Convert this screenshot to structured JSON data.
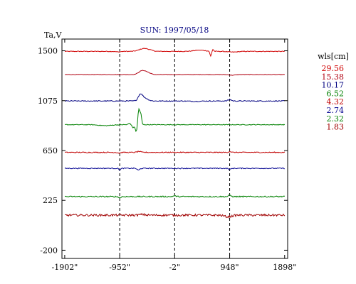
{
  "chart_data": {
    "type": "line",
    "title": "SUN: 1997/05/18",
    "ylabel": "Ta,V",
    "xlabel": "",
    "xlim": [
      -1950,
      1950
    ],
    "ylim": [
      -270,
      1600
    ],
    "x_ticks": [
      {
        "value": -1902,
        "label": "-1902\""
      },
      {
        "value": -952,
        "label": "-952\""
      },
      {
        "value": -2,
        "label": "-2\""
      },
      {
        "value": 948,
        "label": "948\""
      },
      {
        "value": 1898,
        "label": "1898\""
      }
    ],
    "y_ticks": [
      {
        "value": 1500,
        "label": "1500"
      },
      {
        "value": 1075,
        "label": "1075"
      },
      {
        "value": 650,
        "label": "650"
      },
      {
        "value": 225,
        "label": "225"
      },
      {
        "value": -200,
        "label": "-200"
      }
    ],
    "vlines": [
      -952,
      -2,
      948
    ],
    "legend": {
      "title": "wls[cm]",
      "placement": "right"
    },
    "series": [
      {
        "name": "29.56",
        "color": "#d00000",
        "baseline": 1495,
        "noise": 3,
        "features": [
          {
            "x": -540,
            "amp": 22,
            "width": 110
          },
          {
            "x": -440,
            "amp": 7,
            "width": 90
          },
          {
            "x": 430,
            "amp": 10,
            "width": 140
          },
          {
            "x": 1000,
            "amp": -6,
            "width": 120
          },
          {
            "x": -980,
            "amp": -5,
            "width": 60
          }
        ],
        "spikes": [
          {
            "x": 620,
            "amp": -42,
            "width": 18
          },
          {
            "x": 660,
            "amp": 16,
            "width": 16
          }
        ]
      },
      {
        "name": "15.38",
        "color": "#b00010",
        "baseline": 1297,
        "noise": 2,
        "features": [
          {
            "x": -560,
            "amp": 34,
            "width": 85
          },
          {
            "x": -460,
            "amp": 12,
            "width": 70
          },
          {
            "x": 1000,
            "amp": -5,
            "width": 80
          }
        ]
      },
      {
        "name": "10.17",
        "color": "#000080",
        "baseline": 1072,
        "noise": 4,
        "features": [
          {
            "x": -600,
            "amp": 55,
            "width": 55
          },
          {
            "x": -520,
            "amp": 24,
            "width": 80
          },
          {
            "x": -640,
            "amp": -8,
            "width": 40
          },
          {
            "x": 950,
            "amp": 12,
            "width": 40
          },
          {
            "x": 350,
            "amp": -4,
            "width": 120
          }
        ]
      },
      {
        "name": "6.52",
        "color": "#008000",
        "baseline": 870,
        "noise": 3,
        "features": [
          {
            "x": -1200,
            "amp": -8,
            "width": 150
          }
        ],
        "spikes": [
          {
            "x": -620,
            "amp": 135,
            "width": 24
          },
          {
            "x": -585,
            "amp": 80,
            "width": 18
          },
          {
            "x": -665,
            "amp": -60,
            "width": 22
          },
          {
            "x": -720,
            "amp": -25,
            "width": 30
          },
          {
            "x": -780,
            "amp": 12,
            "width": 30
          }
        ]
      },
      {
        "name": "4.32",
        "color": "#c00000",
        "baseline": 634,
        "noise": 4,
        "features": [
          {
            "x": -620,
            "amp": 8,
            "width": 40
          },
          {
            "x": 950,
            "amp": 8,
            "width": 30
          },
          {
            "x": -960,
            "amp": -6,
            "width": 30
          }
        ]
      },
      {
        "name": "2.74",
        "color": "#000090",
        "baseline": 498,
        "noise": 4,
        "features": [
          {
            "x": -630,
            "amp": -16,
            "width": 30
          },
          {
            "x": -950,
            "amp": -12,
            "width": 25
          },
          {
            "x": 950,
            "amp": -10,
            "width": 30
          }
        ]
      },
      {
        "name": "2.32",
        "color": "#008000",
        "baseline": 257,
        "noise": 5,
        "features": [
          {
            "x": -950,
            "amp": -12,
            "width": 25
          },
          {
            "x": 950,
            "amp": 12,
            "width": 30
          },
          {
            "x": -2,
            "amp": 6,
            "width": 40
          }
        ]
      },
      {
        "name": "1.83",
        "color": "#a00000",
        "baseline": 99,
        "noise": 9,
        "features": [
          {
            "x": 920,
            "amp": -14,
            "width": 90
          },
          {
            "x": -560,
            "amp": 6,
            "width": 60
          }
        ]
      }
    ]
  }
}
